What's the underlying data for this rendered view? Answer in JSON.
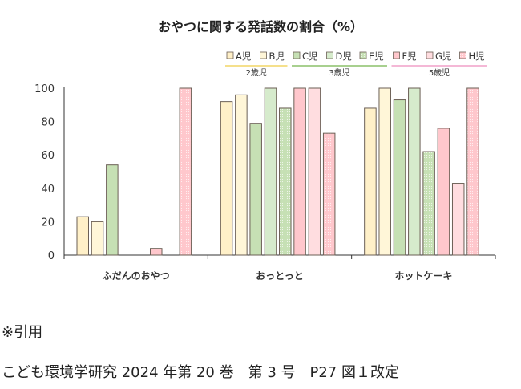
{
  "chart_data": {
    "type": "bar",
    "title": "おやつに関する発話数の割合（%）",
    "categories": [
      "ふだんのおやつ",
      "おっとっと",
      "ホットケーキ"
    ],
    "ylim": [
      0,
      100
    ],
    "yticks": [
      0,
      20,
      40,
      60,
      80,
      100
    ],
    "grid": false,
    "legend_position": "top-right",
    "series": [
      {
        "name": "A児",
        "values": [
          23,
          92,
          88
        ],
        "color": "#fff0c8",
        "pattern": "none"
      },
      {
        "name": "B児",
        "values": [
          20,
          96,
          100
        ],
        "color": "#fff6d8",
        "pattern": "none"
      },
      {
        "name": "C児",
        "values": [
          54,
          79,
          93
        ],
        "color": "#c6e0b4",
        "pattern": "none"
      },
      {
        "name": "D児",
        "values": [
          0,
          100,
          100
        ],
        "color": "#d6ebcc",
        "pattern": "none"
      },
      {
        "name": "E児",
        "values": [
          0,
          88,
          62
        ],
        "color": "#c6e0b4",
        "pattern": "dots"
      },
      {
        "name": "F児",
        "values": [
          4,
          100,
          76
        ],
        "color": "#ffc7cc",
        "pattern": "none"
      },
      {
        "name": "G児",
        "values": [
          0,
          100,
          43
        ],
        "color": "#ffdde0",
        "pattern": "none"
      },
      {
        "name": "H児",
        "values": [
          100,
          73,
          100
        ],
        "color": "#ffc7cc",
        "pattern": "dots"
      }
    ],
    "age_groups": [
      {
        "label": "2歳児",
        "members": [
          "A児",
          "B児"
        ],
        "color": "#f2d666"
      },
      {
        "label": "3歳児",
        "members": [
          "C児",
          "D児",
          "E児"
        ],
        "color": "#8cc06a"
      },
      {
        "label": "5歳児",
        "members": [
          "F児",
          "G児",
          "H児"
        ],
        "color": "#f0a0c8"
      }
    ]
  },
  "notes": {
    "line1": "※引用",
    "line2": "こども環境学研究 2024 年第 20 巻　第 3 号　P27 図１改定"
  }
}
